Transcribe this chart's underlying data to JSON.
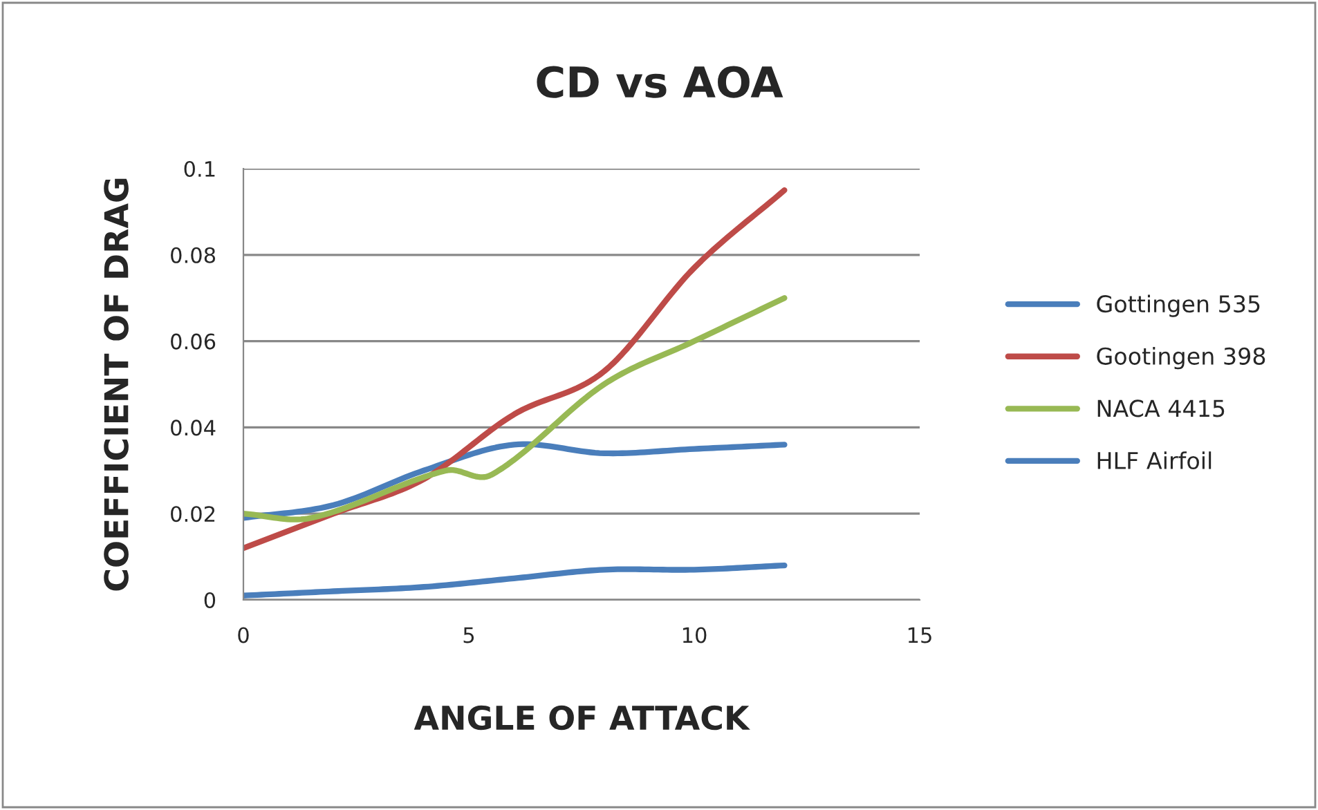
{
  "chart_data": {
    "type": "line",
    "title": "CD vs AOA",
    "xlabel": "ANGLE OF ATTACK",
    "ylabel": "COEFFICIENT OF DRAG",
    "xlim": [
      0,
      15
    ],
    "xticks": [
      0,
      5,
      10,
      15
    ],
    "ylim": [
      0,
      0.1
    ],
    "yticks": [
      0,
      0.02,
      0.04,
      0.06,
      0.08,
      0.1
    ],
    "grid": "y",
    "legend": "right",
    "marker": "none",
    "line_style": "solid",
    "series": [
      {
        "name": "Gottingen 535",
        "color": "#4a7ebb",
        "x": [
          0,
          2,
          4,
          6,
          8,
          10,
          12
        ],
        "values": [
          0.019,
          0.022,
          0.03,
          0.036,
          0.034,
          0.035,
          0.036
        ]
      },
      {
        "name": "Gootingen 398",
        "color": "#be4b48",
        "x": [
          0,
          2,
          4,
          6,
          8,
          10,
          12
        ],
        "values": [
          0.012,
          0.02,
          0.028,
          0.043,
          0.053,
          0.077,
          0.095
        ]
      },
      {
        "name": "NACA 4415",
        "color": "#98b954",
        "x": [
          0,
          1.5,
          4.5,
          5.5,
          8,
          10,
          12
        ],
        "values": [
          0.02,
          0.019,
          0.03,
          0.029,
          0.05,
          0.06,
          0.07
        ]
      },
      {
        "name": "HLF Airfoil",
        "color": "#4a7ebb",
        "x": [
          0,
          2,
          4,
          6,
          8,
          10,
          12
        ],
        "values": [
          0.001,
          0.002,
          0.003,
          0.005,
          0.007,
          0.007,
          0.008
        ]
      }
    ]
  }
}
